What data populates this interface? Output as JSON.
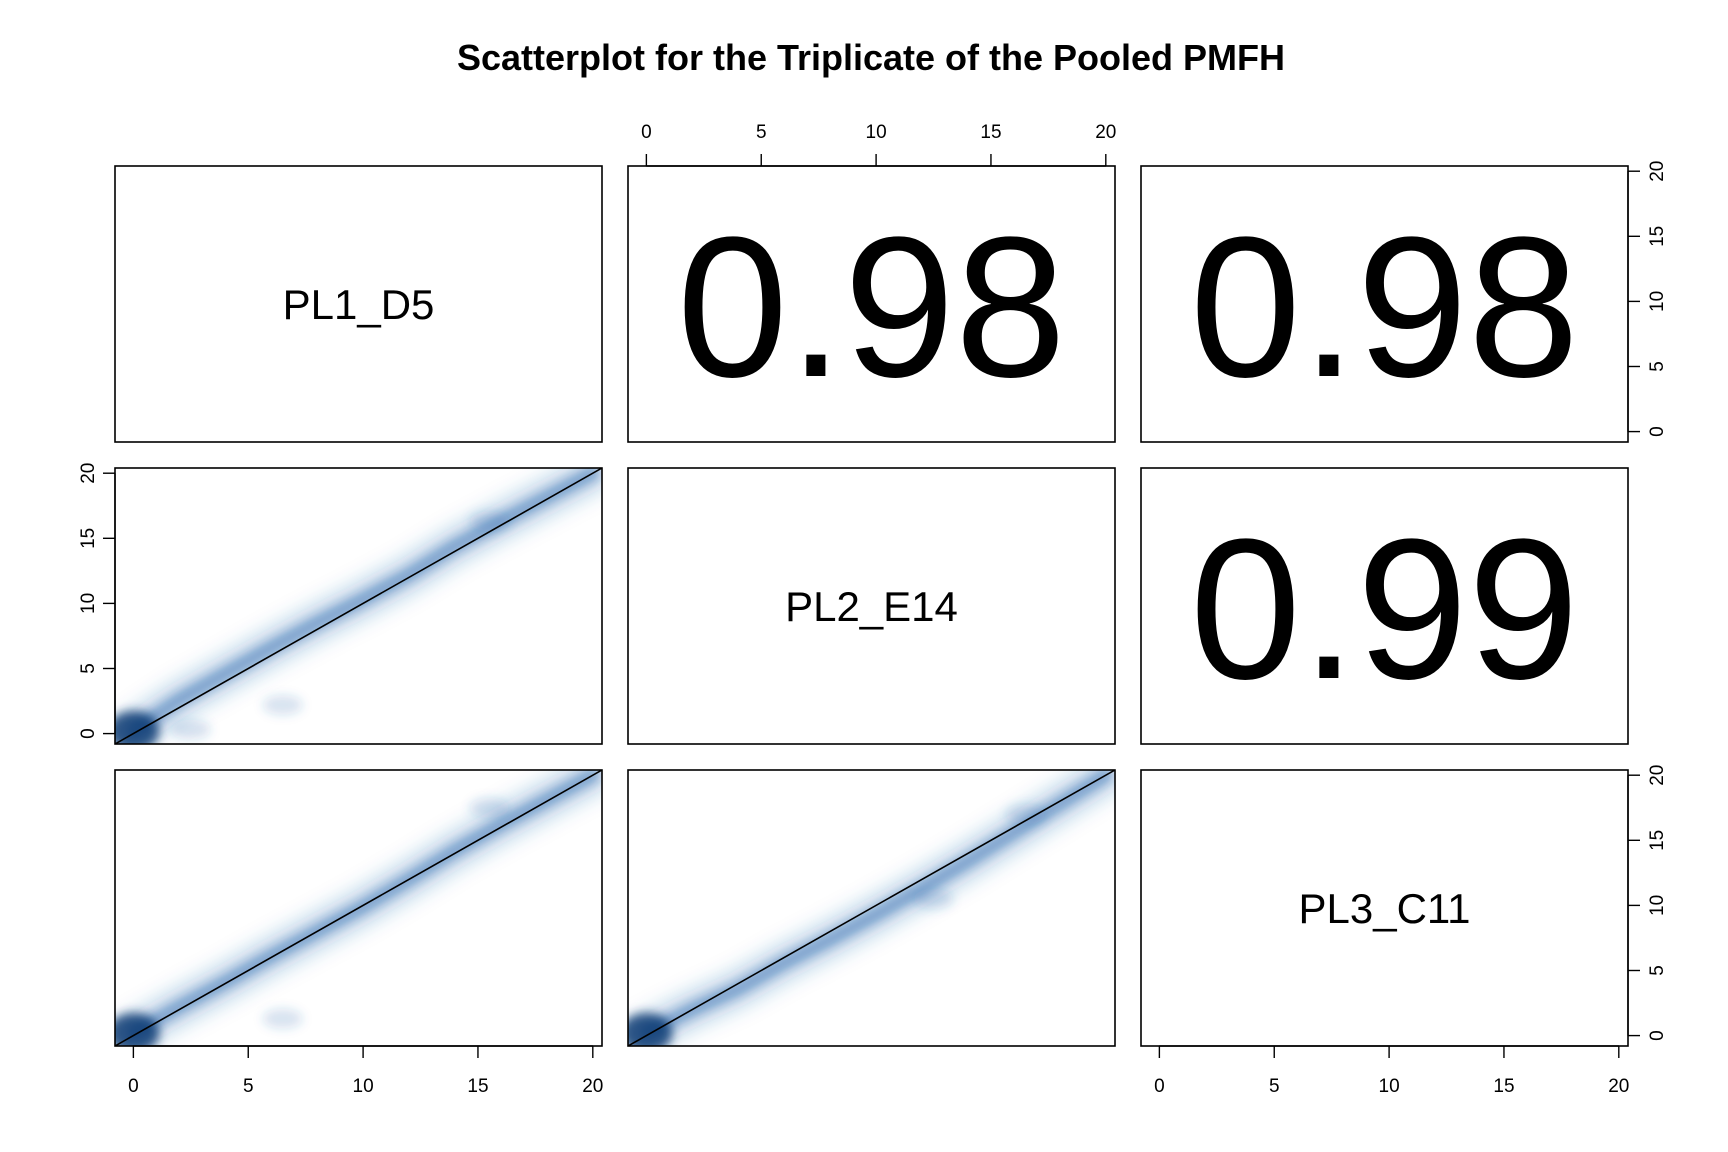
{
  "chart_data": {
    "type": "scatter",
    "subtype": "pairs-matrix",
    "title": "Scatterplot for the Triplicate of the Pooled PMFH",
    "variables": [
      "PL1_D5",
      "PL2_E14",
      "PL3_C11"
    ],
    "axis_range": [
      -0.8,
      20.4
    ],
    "ticks": [
      0,
      5,
      10,
      15,
      20
    ],
    "correlations": [
      {
        "row": 0,
        "col": 1,
        "pair": [
          "PL1_D5",
          "PL2_E14"
        ],
        "value": "0.98"
      },
      {
        "row": 0,
        "col": 2,
        "pair": [
          "PL1_D5",
          "PL3_C11"
        ],
        "value": "0.98"
      },
      {
        "row": 1,
        "col": 2,
        "pair": [
          "PL2_E14",
          "PL3_C11"
        ],
        "value": "0.99"
      }
    ],
    "scatter_panels": [
      {
        "row": 1,
        "col": 0,
        "x_var": "PL1_D5",
        "y_var": "PL2_E14",
        "reference_line": {
          "slope": 1,
          "intercept": 0
        },
        "density_center_points": [
          [
            0,
            0.2
          ],
          [
            2,
            2.6
          ],
          [
            4,
            4.6
          ],
          [
            6,
            6.6
          ],
          [
            8,
            8.5
          ],
          [
            10,
            10.3
          ],
          [
            12,
            12.2
          ],
          [
            14,
            14.4
          ],
          [
            16,
            16.3
          ],
          [
            20,
            20
          ]
        ],
        "outlier_clusters": [
          [
            6.5,
            2.2
          ],
          [
            2.5,
            0.3
          ],
          [
            15.5,
            16.3
          ]
        ]
      },
      {
        "row": 2,
        "col": 0,
        "x_var": "PL1_D5",
        "y_var": "PL3_C11",
        "reference_line": {
          "slope": 1,
          "intercept": 0
        },
        "density_center_points": [
          [
            0,
            0.2
          ],
          [
            2,
            2.2
          ],
          [
            4,
            4.1
          ],
          [
            6,
            6.1
          ],
          [
            8,
            8.0
          ],
          [
            10,
            9.9
          ],
          [
            12,
            12.0
          ],
          [
            14,
            14.2
          ],
          [
            16,
            16.2
          ],
          [
            20,
            20
          ]
        ],
        "outlier_clusters": [
          [
            6.5,
            1.3
          ],
          [
            15.5,
            17.5
          ]
        ]
      },
      {
        "row": 2,
        "col": 1,
        "x_var": "PL2_E14",
        "y_var": "PL3_C11",
        "reference_line": {
          "slope": 1,
          "intercept": 0
        },
        "density_center_points": [
          [
            0,
            0.2
          ],
          [
            2,
            2.0
          ],
          [
            4,
            3.6
          ],
          [
            6,
            5.6
          ],
          [
            8,
            7.4
          ],
          [
            10,
            9.3
          ],
          [
            12,
            11.3
          ],
          [
            14,
            13.4
          ],
          [
            16,
            15.6
          ],
          [
            20,
            20
          ]
        ],
        "outlier_clusters": [
          [
            12.5,
            10.5
          ],
          [
            16.5,
            17.0
          ]
        ]
      }
    ],
    "colors": {
      "density": "#2166ac",
      "line": "#000000"
    }
  }
}
